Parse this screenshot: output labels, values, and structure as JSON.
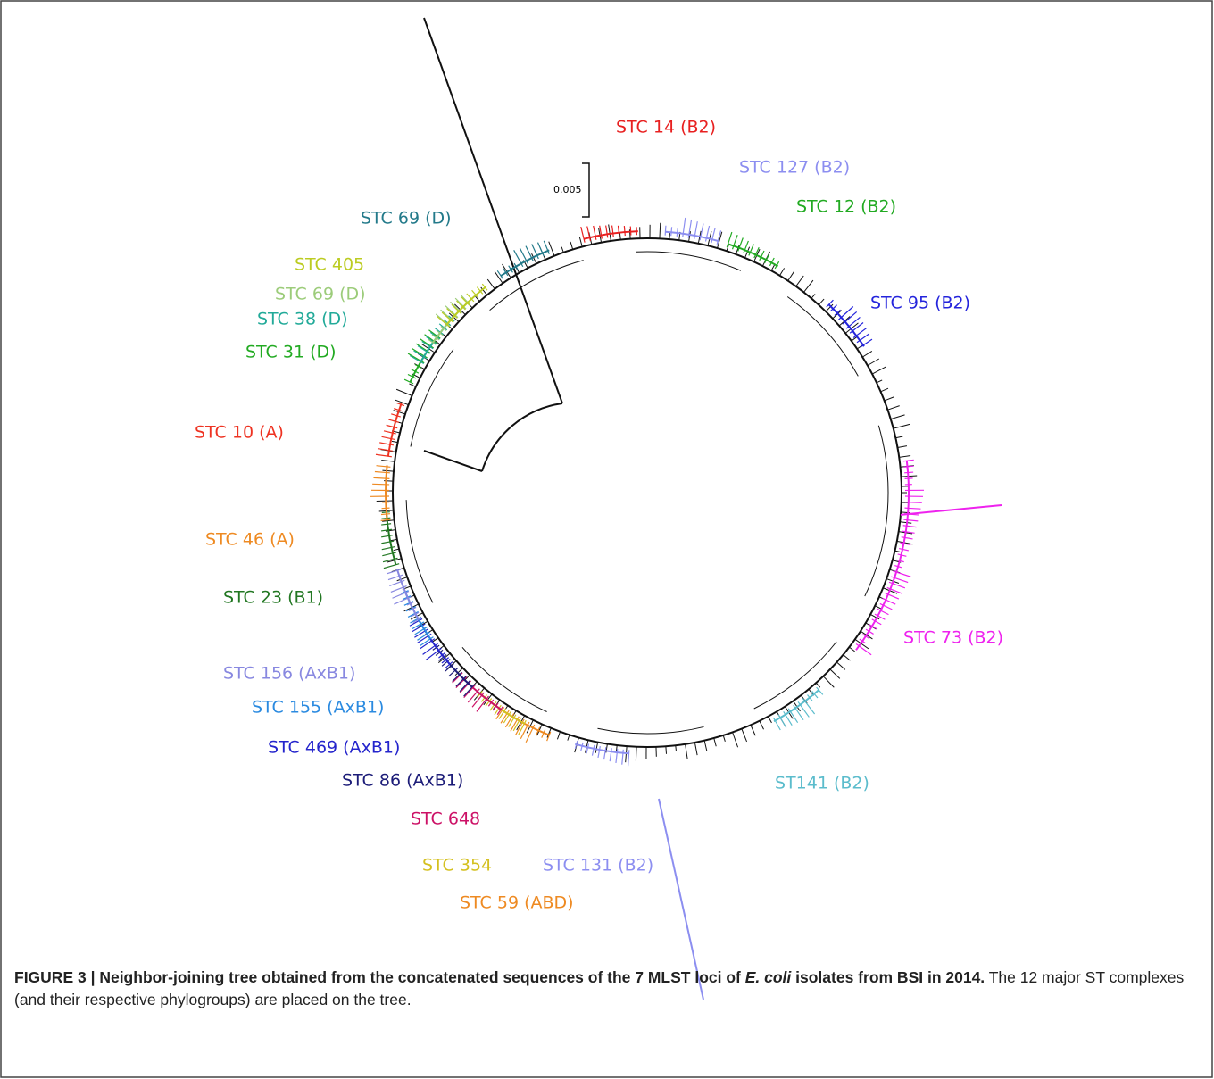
{
  "figure": {
    "scale_bar": "0.005",
    "labels": [
      {
        "text": "STC 14 (B2)",
        "color": "#e82020"
      },
      {
        "text": "STC 127 (B2)",
        "color": "#8c8ef0"
      },
      {
        "text": "STC 12 (B2)",
        "color": "#22aa22"
      },
      {
        "text": "STC 95 (B2)",
        "color": "#2424dc"
      },
      {
        "text": "STC 73 (B2)",
        "color": "#ee22ee"
      },
      {
        "text": "ST141 (B2)",
        "color": "#5bbccc"
      },
      {
        "text": "STC 131 (B2)",
        "color": "#8c8ef0"
      },
      {
        "text": "STC 59 (ABD)",
        "color": "#ee8a22"
      },
      {
        "text": "STC 354",
        "color": "#d4c020"
      },
      {
        "text": "STC 648",
        "color": "#cc1166"
      },
      {
        "text": "STC 86 (AxB1)",
        "color": "#1c1c78"
      },
      {
        "text": "STC 469 (AxB1)",
        "color": "#2424cc"
      },
      {
        "text": "STC 155 (AxB1)",
        "color": "#2a8ae0"
      },
      {
        "text": "STC 156 (AxB1)",
        "color": "#8888e0"
      },
      {
        "text": "STC 23 (B1)",
        "color": "#227722"
      },
      {
        "text": "STC 46 (A)",
        "color": "#ee8a22"
      },
      {
        "text": "STC 10 (A)",
        "color": "#ee3322"
      },
      {
        "text": "STC 31 (D)",
        "color": "#22aa22"
      },
      {
        "text": "STC 38 (D)",
        "color": "#22aa99"
      },
      {
        "text": "STC 69 (D)",
        "color": "#9ccc7a"
      },
      {
        "text": "STC 405",
        "color": "#bccc22"
      },
      {
        "text": "STC 69 (D)",
        "color": "#237a8a"
      }
    ],
    "caption": {
      "bold_start": "FIGURE 3 | Neighbor-joining tree obtained from the concatenated sequences of the 7 MLST loci of ",
      "bold_italic": "E. coli",
      "bold_end": " isolates from BSI in 2014.",
      "text": " The 12 major ST complexes (and their respective phylogroups) are placed on the tree."
    }
  }
}
